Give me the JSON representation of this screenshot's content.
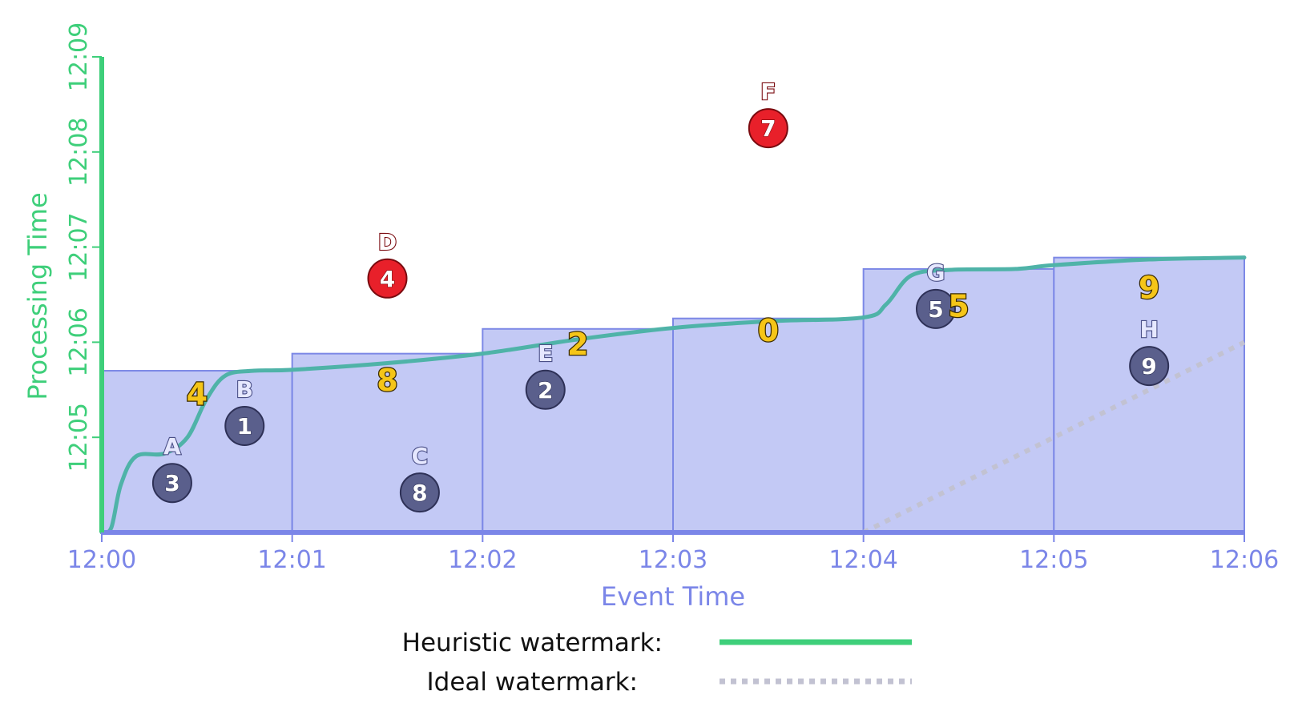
{
  "chart_data": {
    "type": "scatter",
    "xlabel": "Event Time",
    "ylabel": "Processing Time",
    "x_ticks": [
      "12:00",
      "12:01",
      "12:02",
      "12:03",
      "12:04",
      "12:05",
      "12:06"
    ],
    "y_ticks": [
      "12:05",
      "12:06",
      "12:07",
      "12:08",
      "12:09"
    ],
    "x_range_minutes": [
      0,
      6
    ],
    "y_range_minutes": [
      4,
      9
    ],
    "grid": false,
    "colors": {
      "axis_x": "#7b86e8",
      "axis_y": "#3ecf7a",
      "pane_fill": "#c3c9f5",
      "pane_stroke": "#7c88e6",
      "heuristic_line": "#4fb3a8",
      "ideal_line": "#c2c2d2",
      "on_time": "#5a5f8c",
      "late": "#e8202a",
      "pane_value": "#f5c518"
    },
    "points": [
      {
        "letter": "A",
        "value": "3",
        "event_min": 0.37,
        "proc_min": 4.52,
        "status": "on_time"
      },
      {
        "letter": "B",
        "value": "1",
        "event_min": 0.75,
        "proc_min": 5.12,
        "status": "on_time"
      },
      {
        "letter": "C",
        "value": "8",
        "event_min": 1.67,
        "proc_min": 4.42,
        "status": "on_time"
      },
      {
        "letter": "D",
        "value": "4",
        "event_min": 1.5,
        "proc_min": 6.67,
        "status": "late"
      },
      {
        "letter": "E",
        "value": "2",
        "event_min": 2.33,
        "proc_min": 5.5,
        "status": "on_time"
      },
      {
        "letter": "F",
        "value": "7",
        "event_min": 3.5,
        "proc_min": 8.25,
        "status": "late"
      },
      {
        "letter": "G",
        "value": "5",
        "event_min": 4.38,
        "proc_min": 6.35,
        "status": "on_time"
      },
      {
        "letter": "H",
        "value": "9",
        "event_min": 5.5,
        "proc_min": 5.75,
        "status": "on_time"
      }
    ],
    "windows": [
      {
        "start_min": 0,
        "end_min": 1,
        "fire_proc_min": 5.7,
        "result": "4"
      },
      {
        "start_min": 1,
        "end_min": 2,
        "fire_proc_min": 5.88,
        "result": "8"
      },
      {
        "start_min": 2,
        "end_min": 3,
        "fire_proc_min": 6.14,
        "result": "2"
      },
      {
        "start_min": 3,
        "end_min": 4,
        "fire_proc_min": 6.25,
        "result": "0"
      },
      {
        "start_min": 4,
        "end_min": 5,
        "fire_proc_min": 6.77,
        "result": "5"
      },
      {
        "start_min": 5,
        "end_min": 6,
        "fire_proc_min": 6.89,
        "result": "9"
      }
    ],
    "heuristic_watermark": [
      [
        0.0,
        4.0
      ],
      [
        0.05,
        4.05
      ],
      [
        0.1,
        4.5
      ],
      [
        0.18,
        4.8
      ],
      [
        0.33,
        4.83
      ],
      [
        0.45,
        5.0
      ],
      [
        0.55,
        5.4
      ],
      [
        0.65,
        5.65
      ],
      [
        0.8,
        5.7
      ],
      [
        1.0,
        5.71
      ],
      [
        1.5,
        5.78
      ],
      [
        2.0,
        5.88
      ],
      [
        2.5,
        6.03
      ],
      [
        3.0,
        6.15
      ],
      [
        3.5,
        6.22
      ],
      [
        4.0,
        6.26
      ],
      [
        4.12,
        6.4
      ],
      [
        4.25,
        6.7
      ],
      [
        4.45,
        6.76
      ],
      [
        4.8,
        6.77
      ],
      [
        5.0,
        6.81
      ],
      [
        5.5,
        6.87
      ],
      [
        6.0,
        6.89
      ]
    ],
    "ideal_watermark": [
      [
        4.0,
        4.0
      ],
      [
        6.0,
        6.0
      ]
    ],
    "legend": {
      "heuristic_label": "Heuristic watermark:",
      "ideal_label": "Ideal watermark:"
    }
  }
}
